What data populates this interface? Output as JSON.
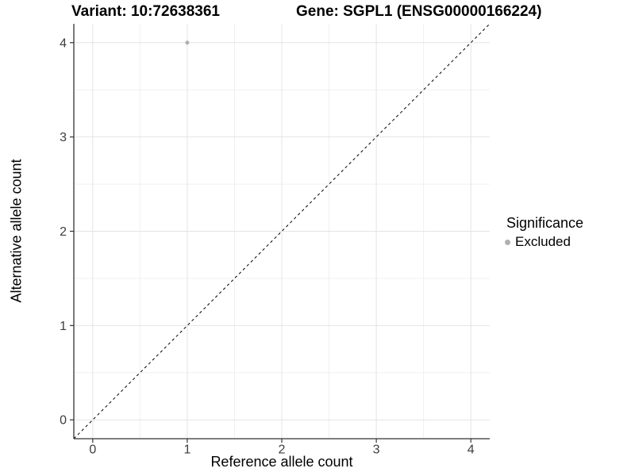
{
  "chart_data": {
    "type": "scatter",
    "title_left": "Variant: 10:72638361",
    "title_right": "Gene: SGPL1 (ENSG00000166224)",
    "xlabel": "Reference allele count",
    "ylabel": "Alternative allele count",
    "xticks": [
      0,
      1,
      2,
      3,
      4
    ],
    "yticks": [
      0,
      1,
      2,
      3,
      4
    ],
    "xminor": [
      0.5,
      1.5,
      2.5,
      3.5
    ],
    "yminor": [
      0.5,
      1.5,
      2.5,
      3.5
    ],
    "xlim": [
      -0.2,
      4.2
    ],
    "ylim": [
      -0.2,
      4.2
    ],
    "grid": "major+minor",
    "legend": {
      "title": "Significance",
      "position": "right"
    },
    "series": [
      {
        "name": "Excluded",
        "color": "#b0b0b0",
        "marker": "circle",
        "points": [
          {
            "x": 1,
            "y": 4
          }
        ]
      }
    ],
    "identity_line": {
      "slope": 1,
      "intercept": 0,
      "style": "dashed",
      "color": "#000000"
    }
  },
  "colors": {
    "background": "#ffffff",
    "major_grid": "#e4e4e4",
    "minor_grid": "#f0f0f0",
    "axis_line": "#333333",
    "tick_mark": "#333333",
    "tick_label": "#3d3d3d",
    "point": "#b0b0b0"
  }
}
